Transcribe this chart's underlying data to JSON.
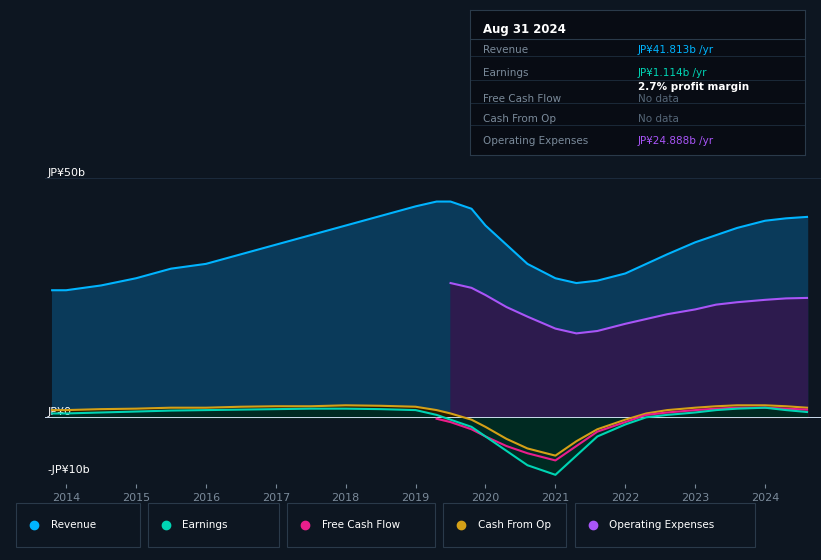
{
  "bg_color": "#0d1621",
  "plot_bg_color": "#0d1621",
  "text_color": "#ffffff",
  "dim_text_color": "#7a8a9a",
  "revenue": {
    "color": "#00b4ff",
    "fill_color": "#0a3a5a",
    "label": "Revenue",
    "x": [
      2013.8,
      2014.0,
      2014.5,
      2015.0,
      2015.5,
      2016.0,
      2016.5,
      2017.0,
      2017.5,
      2018.0,
      2018.5,
      2019.0,
      2019.3,
      2019.5,
      2019.8,
      2020.0,
      2020.3,
      2020.6,
      2021.0,
      2021.3,
      2021.6,
      2022.0,
      2022.3,
      2022.6,
      2023.0,
      2023.3,
      2023.6,
      2024.0,
      2024.3,
      2024.6
    ],
    "y": [
      26.5,
      26.5,
      27.5,
      29.0,
      31.0,
      32.0,
      34.0,
      36.0,
      38.0,
      40.0,
      42.0,
      44.0,
      45.0,
      45.0,
      43.5,
      40.0,
      36.0,
      32.0,
      29.0,
      28.0,
      28.5,
      30.0,
      32.0,
      34.0,
      36.5,
      38.0,
      39.5,
      41.0,
      41.5,
      41.8
    ]
  },
  "operating_expenses": {
    "color": "#a855f7",
    "fill_color": "#2d1b4e",
    "label": "Operating Expenses",
    "x": [
      2019.5,
      2019.8,
      2020.0,
      2020.3,
      2020.6,
      2021.0,
      2021.3,
      2021.6,
      2022.0,
      2022.3,
      2022.6,
      2023.0,
      2023.3,
      2023.6,
      2024.0,
      2024.3,
      2024.6
    ],
    "y": [
      28.0,
      27.0,
      25.5,
      23.0,
      21.0,
      18.5,
      17.5,
      18.0,
      19.5,
      20.5,
      21.5,
      22.5,
      23.5,
      24.0,
      24.5,
      24.8,
      24.9
    ]
  },
  "earnings": {
    "color": "#00d4b4",
    "fill_color": "#002a22",
    "label": "Earnings",
    "x": [
      2013.8,
      2014.0,
      2014.5,
      2015.0,
      2015.5,
      2016.0,
      2016.5,
      2017.0,
      2017.5,
      2018.0,
      2018.5,
      2019.0,
      2019.3,
      2019.5,
      2019.8,
      2020.0,
      2020.3,
      2020.6,
      2021.0,
      2021.3,
      2021.6,
      2022.0,
      2022.3,
      2022.6,
      2023.0,
      2023.3,
      2023.6,
      2024.0,
      2024.3,
      2024.6
    ],
    "y": [
      0.8,
      0.8,
      1.0,
      1.2,
      1.4,
      1.5,
      1.6,
      1.7,
      1.8,
      1.8,
      1.7,
      1.5,
      0.5,
      -0.5,
      -2.0,
      -4.0,
      -7.0,
      -10.0,
      -12.0,
      -8.0,
      -4.0,
      -1.5,
      0.0,
      0.5,
      1.0,
      1.5,
      1.8,
      2.0,
      1.5,
      1.1
    ]
  },
  "free_cash_flow": {
    "color": "#e91e8c",
    "fill_color": "#4a0a20",
    "label": "Free Cash Flow",
    "x": [
      2019.3,
      2019.5,
      2019.8,
      2020.0,
      2020.3,
      2020.6,
      2021.0,
      2021.3,
      2021.6,
      2022.0,
      2022.3,
      2022.6,
      2023.0,
      2023.3,
      2023.6,
      2024.0,
      2024.3,
      2024.6
    ],
    "y": [
      -0.3,
      -1.0,
      -2.5,
      -4.0,
      -6.0,
      -7.5,
      -9.0,
      -6.0,
      -3.0,
      -1.0,
      0.5,
      1.0,
      1.5,
      1.8,
      2.0,
      2.0,
      1.8,
      1.6
    ]
  },
  "cash_from_op": {
    "color": "#d4a017",
    "fill_color": "#2a1a00",
    "label": "Cash From Op",
    "x": [
      2013.8,
      2014.0,
      2014.5,
      2015.0,
      2015.5,
      2016.0,
      2016.5,
      2017.0,
      2017.5,
      2018.0,
      2018.5,
      2019.0,
      2019.3,
      2019.5,
      2019.8,
      2020.0,
      2020.3,
      2020.6,
      2021.0,
      2021.3,
      2021.6,
      2022.0,
      2022.3,
      2022.6,
      2023.0,
      2023.3,
      2023.6,
      2024.0,
      2024.3,
      2024.6
    ],
    "y": [
      1.5,
      1.5,
      1.7,
      1.8,
      2.0,
      2.0,
      2.2,
      2.3,
      2.3,
      2.5,
      2.4,
      2.2,
      1.5,
      0.8,
      -0.5,
      -2.0,
      -4.5,
      -6.5,
      -8.0,
      -5.0,
      -2.5,
      -0.5,
      0.8,
      1.5,
      2.0,
      2.3,
      2.5,
      2.5,
      2.3,
      2.0
    ]
  },
  "ylim": [
    -14,
    52
  ],
  "xlim": [
    2013.7,
    2024.8
  ],
  "xticks": [
    2014,
    2015,
    2016,
    2017,
    2018,
    2019,
    2020,
    2021,
    2022,
    2023,
    2024
  ],
  "info_box": {
    "date": "Aug 31 2024",
    "rows": [
      {
        "label": "Revenue",
        "value": "JP¥41.813b /yr",
        "value_color": "#00b4ff",
        "sub": null
      },
      {
        "label": "Earnings",
        "value": "JP¥1.114b /yr",
        "value_color": "#00d4b4",
        "sub": "2.7% profit margin"
      },
      {
        "label": "Free Cash Flow",
        "value": "No data",
        "value_color": "#556677",
        "sub": null
      },
      {
        "label": "Cash From Op",
        "value": "No data",
        "value_color": "#556677",
        "sub": null
      },
      {
        "label": "Operating Expenses",
        "value": "JP¥24.888b /yr",
        "value_color": "#a855f7",
        "sub": null
      }
    ]
  }
}
